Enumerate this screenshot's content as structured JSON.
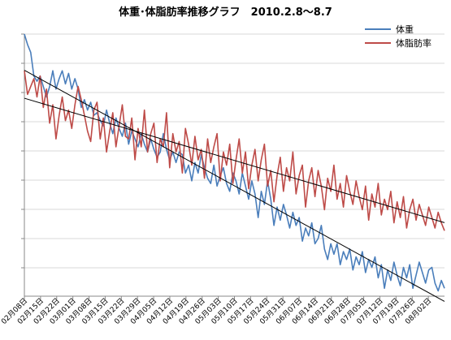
{
  "chart_data": {
    "type": "line",
    "title": "体重･体脂肪率推移グラフ　2010.2.8～8.7",
    "x_ticks": [
      "02月08日",
      "02月15日",
      "02月22日",
      "03月01日",
      "03月08日",
      "03月15日",
      "03月22日",
      "03月29日",
      "04月05日",
      "04月12日",
      "04月19日",
      "04月26日",
      "05月03日",
      "05月10日",
      "05月17日",
      "05月24日",
      "05月31日",
      "06月07日",
      "06月14日",
      "06月21日",
      "06月28日",
      "07月05日",
      "07月12日",
      "07月19日",
      "07月26日",
      "08月02日"
    ],
    "y_axis_labels_shown": false,
    "grid": "horizontal",
    "legend_position": "top-right",
    "series": [
      {
        "name": "体重",
        "color": "#4a7ebb",
        "values": [
          1.0,
          0.96,
          0.93,
          0.84,
          0.82,
          0.84,
          0.8,
          0.76,
          0.8,
          0.86,
          0.79,
          0.83,
          0.86,
          0.81,
          0.85,
          0.79,
          0.83,
          0.79,
          0.72,
          0.75,
          0.71,
          0.74,
          0.69,
          0.7,
          0.67,
          0.65,
          0.71,
          0.66,
          0.62,
          0.68,
          0.64,
          0.61,
          0.66,
          0.58,
          0.63,
          0.6,
          0.57,
          0.62,
          0.58,
          0.55,
          0.6,
          0.56,
          0.53,
          0.55,
          0.62,
          0.56,
          0.52,
          0.55,
          0.51,
          0.55,
          0.54,
          0.47,
          0.5,
          0.44,
          0.51,
          0.47,
          0.54,
          0.49,
          0.45,
          0.43,
          0.5,
          0.42,
          0.46,
          0.49,
          0.43,
          0.4,
          0.47,
          0.44,
          0.39,
          0.47,
          0.42,
          0.37,
          0.44,
          0.39,
          0.3,
          0.4,
          0.35,
          0.44,
          0.37,
          0.27,
          0.34,
          0.29,
          0.35,
          0.31,
          0.26,
          0.32,
          0.27,
          0.3,
          0.21,
          0.26,
          0.23,
          0.28,
          0.2,
          0.22,
          0.27,
          0.18,
          0.14,
          0.2,
          0.16,
          0.2,
          0.12,
          0.17,
          0.14,
          0.18,
          0.1,
          0.15,
          0.12,
          0.17,
          0.09,
          0.14,
          0.11,
          0.15,
          0.07,
          0.12,
          0.03,
          0.1,
          0.06,
          0.13,
          0.08,
          0.04,
          0.11,
          0.07,
          0.12,
          0.03,
          0.08,
          0.13,
          0.09,
          0.05,
          0.1,
          0.11,
          0.05,
          0.02,
          0.06,
          0.03
        ]
      },
      {
        "name": "体脂肪率",
        "color": "#be4b48",
        "values": [
          0.86,
          0.77,
          0.8,
          0.83,
          0.76,
          0.84,
          0.72,
          0.79,
          0.66,
          0.73,
          0.6,
          0.69,
          0.76,
          0.67,
          0.71,
          0.64,
          0.73,
          0.8,
          0.75,
          0.69,
          0.63,
          0.59,
          0.71,
          0.74,
          0.6,
          0.68,
          0.55,
          0.63,
          0.7,
          0.57,
          0.65,
          0.73,
          0.61,
          0.6,
          0.68,
          0.52,
          0.64,
          0.57,
          0.71,
          0.55,
          0.62,
          0.66,
          0.51,
          0.6,
          0.57,
          0.7,
          0.49,
          0.62,
          0.55,
          0.59,
          0.47,
          0.64,
          0.58,
          0.5,
          0.61,
          0.52,
          0.56,
          0.45,
          0.6,
          0.51,
          0.57,
          0.62,
          0.44,
          0.55,
          0.5,
          0.58,
          0.43,
          0.52,
          0.6,
          0.47,
          0.55,
          0.41,
          0.5,
          0.56,
          0.44,
          0.52,
          0.58,
          0.42,
          0.48,
          0.36,
          0.46,
          0.53,
          0.4,
          0.49,
          0.44,
          0.55,
          0.39,
          0.46,
          0.5,
          0.34,
          0.44,
          0.49,
          0.38,
          0.48,
          0.42,
          0.33,
          0.45,
          0.4,
          0.5,
          0.37,
          0.43,
          0.34,
          0.46,
          0.4,
          0.35,
          0.44,
          0.38,
          0.33,
          0.42,
          0.29,
          0.39,
          0.34,
          0.43,
          0.31,
          0.37,
          0.33,
          0.4,
          0.28,
          0.36,
          0.3,
          0.38,
          0.26,
          0.33,
          0.37,
          0.29,
          0.35,
          0.31,
          0.27,
          0.34,
          0.3,
          0.26,
          0.32,
          0.28,
          0.25
        ]
      }
    ],
    "trendlines": true
  }
}
